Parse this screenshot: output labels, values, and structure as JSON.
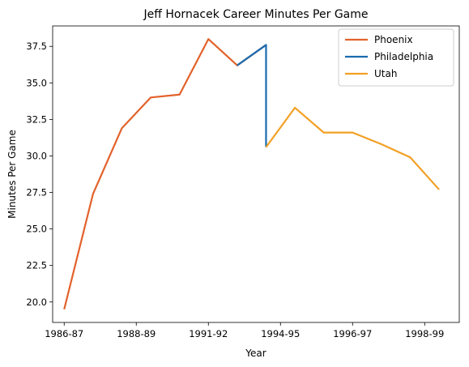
{
  "chart_data": {
    "type": "line",
    "title": "Jeff Hornacek Career Minutes Per Game",
    "xlabel": "Year",
    "ylabel": "Minutes Per Game",
    "x_tick_labels": [
      "1986-87",
      "1988-89",
      "1991-92",
      "1994-95",
      "1996-97",
      "1998-99"
    ],
    "x_tick_positions": [
      1986,
      1988.5,
      1991,
      1993.5,
      1996,
      1998.5
    ],
    "y_ticks": [
      20.0,
      22.5,
      25.0,
      27.5,
      30.0,
      32.5,
      35.0,
      37.5
    ],
    "y_tick_labels": [
      "20.0",
      "22.5",
      "25.0",
      "27.5",
      "30.0",
      "32.5",
      "35.0",
      "37.5"
    ],
    "xlim": [
      1985.6,
      1999.7
    ],
    "ylim": [
      18.6,
      38.9
    ],
    "legend_position": "top-right",
    "grid": false,
    "series": [
      {
        "name": "Phoenix",
        "color": "#E2622B",
        "x": [
          1986,
          1987,
          1988,
          1989,
          1990,
          1991,
          1992,
          1993
        ],
        "y": [
          19.5,
          27.4,
          31.9,
          34.0,
          34.2,
          38.0,
          36.2,
          37.6
        ]
      },
      {
        "name": "Philadelphia",
        "color": "#1A6AB0",
        "x": [
          1992,
          1993,
          1993
        ],
        "y": [
          36.2,
          37.6,
          30.6
        ]
      },
      {
        "name": "Utah",
        "color": "#F2A024",
        "x": [
          1993,
          1994,
          1995,
          1996,
          1997,
          1998,
          1999
        ],
        "y": [
          30.6,
          33.3,
          31.6,
          31.6,
          30.8,
          29.9,
          27.7
        ]
      }
    ]
  }
}
